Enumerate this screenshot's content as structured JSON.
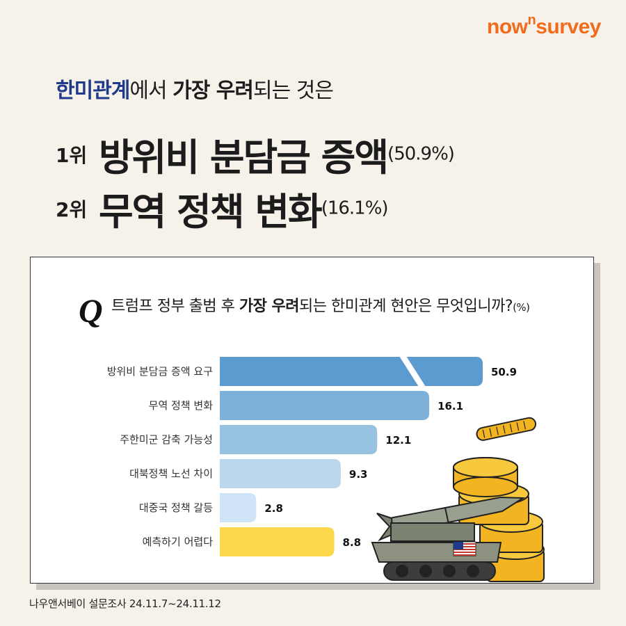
{
  "brand": {
    "pre": "now",
    "sup": "n",
    "post": "survey"
  },
  "headline": {
    "part1": "한미관계",
    "part2": "에서 ",
    "part3": "가장 우려",
    "part4": "되는 것은"
  },
  "ranks": [
    {
      "num": "1위",
      "label": "방위비 분담금 증액",
      "pct": "(50.9%)"
    },
    {
      "num": "2위",
      "label": "무역 정책 변화",
      "pct": "(16.1%)"
    }
  ],
  "question": {
    "mark": "Q",
    "part1": "트럼프 정부 출범 후 ",
    "part2": "가장 우려",
    "part3": "되는 한미관계 현안은 무엇입니까?",
    "unit": "(%)"
  },
  "source": "나우앤서베이 설문조사 24.11.7~24.11.12",
  "chart_data": {
    "type": "bar",
    "orientation": "horizontal",
    "categories": [
      "방위비 분담금 증액 요구",
      "무역 정책 변화",
      "주한미군 감축 가능성",
      "대북정책 노선 차이",
      "대중국 정책 갈등",
      "예측하기 어렵다"
    ],
    "values": [
      50.9,
      16.1,
      12.1,
      9.3,
      2.8,
      8.8
    ],
    "value_labels": [
      "50.9",
      "16.1",
      "12.1",
      "9.3",
      "2.8",
      "8.8"
    ],
    "colors": [
      "#5b9bcf",
      "#7db1da",
      "#98c2e2",
      "#bad7ee",
      "#cfe5f7",
      "#fbd94a"
    ],
    "unit": "%",
    "axis_break_on_first_bar": true
  }
}
